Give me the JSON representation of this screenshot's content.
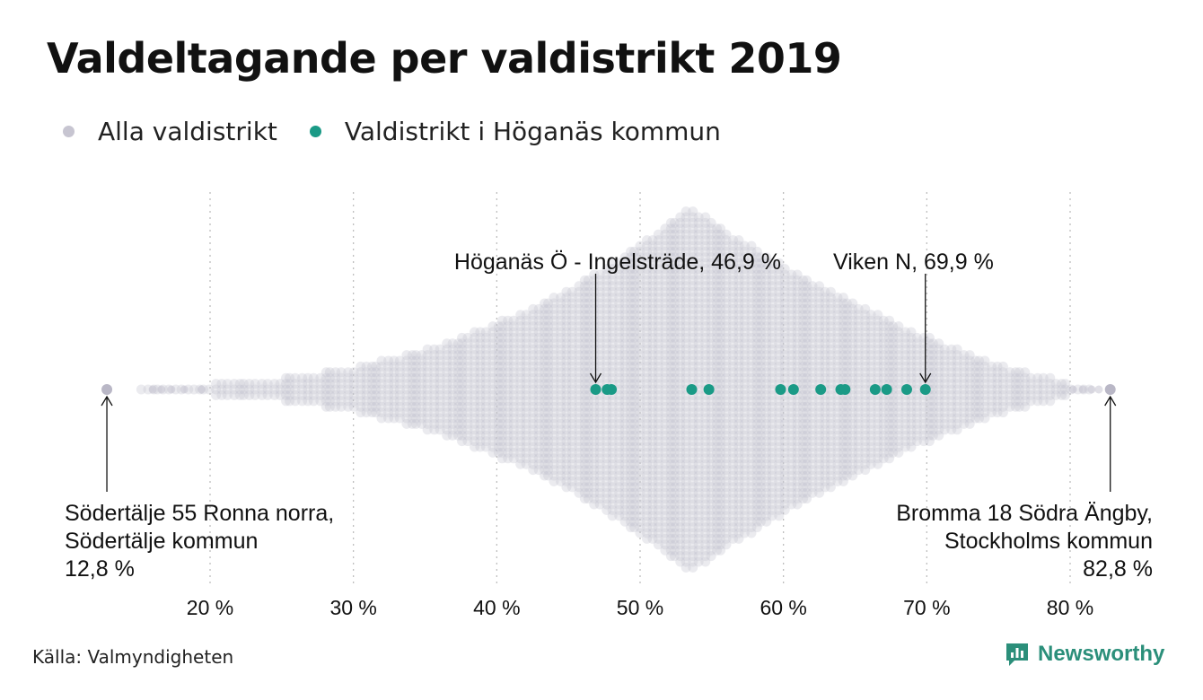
{
  "title": "Valdeltagande per valdistrikt 2019",
  "legend": [
    {
      "label": "Alla valdistrikt",
      "color": "#c7c5d1"
    },
    {
      "label": "Valdistrikt i Höganäs kommun",
      "color": "#1a9a86"
    }
  ],
  "source": "Källa: Valmyndigheten",
  "brand": "Newsworthy",
  "chart_data": {
    "type": "scatter",
    "subtype": "beeswarm",
    "title": "Valdeltagande per valdistrikt 2019",
    "x_unit": "%",
    "xlim": [
      12,
      84
    ],
    "x_ticks": [
      20,
      30,
      40,
      50,
      60,
      70,
      80
    ],
    "x_tick_labels": [
      "20 %",
      "30 %",
      "40 %",
      "50 %",
      "60 %",
      "70 %",
      "80 %"
    ],
    "grid": "vertical dotted lines at ticks",
    "legend_position": "top-left",
    "series": [
      {
        "name": "Alla valdistrikt",
        "color": "#c7c5d1",
        "min": 12.8,
        "max": 82.8,
        "peak": 53.5,
        "note": "distribution of all voting districts (range 12.8–82.8 %)"
      },
      {
        "name": "Valdistrikt i Höganäs kommun",
        "color": "#1a9a86",
        "values": [
          46.9,
          47.7,
          48.0,
          53.6,
          54.8,
          59.8,
          60.7,
          62.6,
          64.0,
          64.3,
          66.4,
          67.2,
          68.6,
          69.9
        ]
      }
    ],
    "annotations": [
      {
        "lines": [
          "Höganäs Ö - Ingelsträde, 46,9 %"
        ],
        "value": 46.9,
        "position": "above"
      },
      {
        "lines": [
          "Viken N, 69,9 %"
        ],
        "value": 69.9,
        "position": "above"
      },
      {
        "lines": [
          "Södertälje 55 Ronna norra,",
          "Södertälje kommun",
          "12,8 %"
        ],
        "value": 12.8,
        "position": "below",
        "align": "left"
      },
      {
        "lines": [
          "Bromma 18 Södra Ängby,",
          "Stockholms kommun",
          "82,8 %"
        ],
        "value": 82.8,
        "position": "below",
        "align": "right"
      }
    ]
  }
}
